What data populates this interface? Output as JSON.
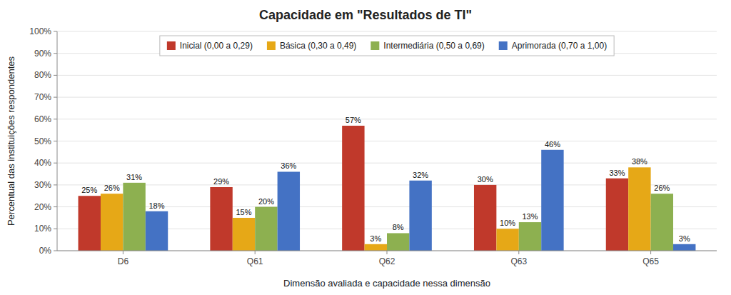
{
  "chart_data": {
    "type": "bar",
    "title": "Capacidade em \"Resultados de TI\"",
    "xlabel": "Dimensão avaliada e capacidade nessa dimensão",
    "ylabel": "Percentual das instituições respondentes",
    "categories": [
      "D6",
      "Q61",
      "Q62",
      "Q63",
      "Q65"
    ],
    "series": [
      {
        "name": "Inicial (0,00 a 0,29)",
        "color": "#c0392b",
        "values": [
          25,
          29,
          57,
          30,
          33
        ],
        "value_labels": [
          "25%",
          "29%",
          "57%",
          "30%",
          "33%"
        ]
      },
      {
        "name": "Básica (0,30 a 0,49)",
        "color": "#e6a817",
        "values": [
          26,
          15,
          3,
          10,
          38
        ],
        "value_labels": [
          "26%",
          "15%",
          "3%",
          "10%",
          "38%"
        ]
      },
      {
        "name": "Intermediária (0,50 a 0,69)",
        "color": "#8db050",
        "values": [
          31,
          20,
          8,
          13,
          26
        ],
        "value_labels": [
          "31%",
          "20%",
          "8%",
          "13%",
          "26%"
        ]
      },
      {
        "name": "Aprimorada (0,70 a 1,00)",
        "color": "#4472c4",
        "values": [
          18,
          36,
          32,
          46,
          3
        ],
        "value_labels": [
          "18%",
          "36%",
          "32%",
          "46%",
          "3%"
        ]
      }
    ],
    "ylim": [
      0,
      100
    ],
    "yticks": [
      {
        "value": 0,
        "label": "0%"
      },
      {
        "value": 10,
        "label": "10%"
      },
      {
        "value": 20,
        "label": "20%"
      },
      {
        "value": 30,
        "label": "30%"
      },
      {
        "value": 40,
        "label": "40%"
      },
      {
        "value": 50,
        "label": "50%"
      },
      {
        "value": 60,
        "label": "60%"
      },
      {
        "value": 70,
        "label": "70%"
      },
      {
        "value": 80,
        "label": "80%"
      },
      {
        "value": 90,
        "label": "90%"
      },
      {
        "value": 100,
        "label": "100%"
      }
    ],
    "grid": true,
    "legend": "top",
    "data_labels": true
  }
}
